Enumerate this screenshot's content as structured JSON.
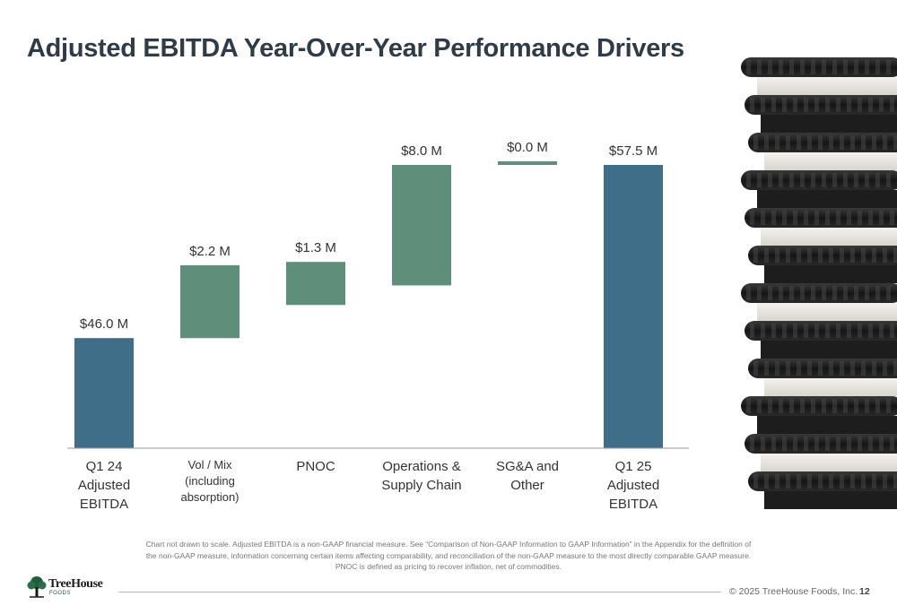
{
  "title": "Adjusted EBITDA Year-Over-Year Performance Drivers",
  "chart_data": {
    "type": "bar",
    "subtype": "waterfall",
    "title": "Adjusted EBITDA Year-Over-Year Performance Drivers",
    "xlabel": "",
    "ylabel": "",
    "grid": false,
    "bars": [
      {
        "category": "Q1 24\nAdjusted\nEBITDA",
        "value": 46.0,
        "label": "$46.0 M",
        "kind": "total",
        "color": "#3f6f88"
      },
      {
        "category": "Vol / Mix\n(including\nabsorption)",
        "value": 2.2,
        "label": "$2.2 M",
        "kind": "change",
        "color": "#5f8f7a"
      },
      {
        "category": "PNOC",
        "value": 1.3,
        "label": "$1.3 M",
        "kind": "change",
        "color": "#5f8f7a"
      },
      {
        "category": "Operations &\nSupply Chain",
        "value": 8.0,
        "label": "$8.0 M",
        "kind": "change",
        "color": "#5f8f7a"
      },
      {
        "category": "SG&A and\nOther",
        "value": 0.0,
        "label": "$0.0 M",
        "kind": "change",
        "color": "#5f8f7a"
      },
      {
        "category": "Q1 25\nAdjusted\nEBITDA",
        "value": 57.5,
        "label": "$57.5 M",
        "kind": "total",
        "color": "#3f6f88"
      }
    ]
  },
  "footnote": "Chart not drawn to scale. Adjusted EBITDA is a non-GAAP financial measure. See “Comparison of Non-GAAP Information to GAAP Information” in the Appendix for the definition of the non-GAAP measure, information concerning certain items affecting comparability, and reconciliation of the non-GAAP measure to the most directly comparable GAAP measure. PNOC is defined as pricing to recover inflation, net of commodities.",
  "logo": {
    "name": "TreeHouse",
    "sub": "FOODS"
  },
  "footer": {
    "copyright": "© 2025 TreeHouse Foods, Inc.",
    "page": "12"
  },
  "image": {
    "icon": "cookie-stack-photo"
  }
}
